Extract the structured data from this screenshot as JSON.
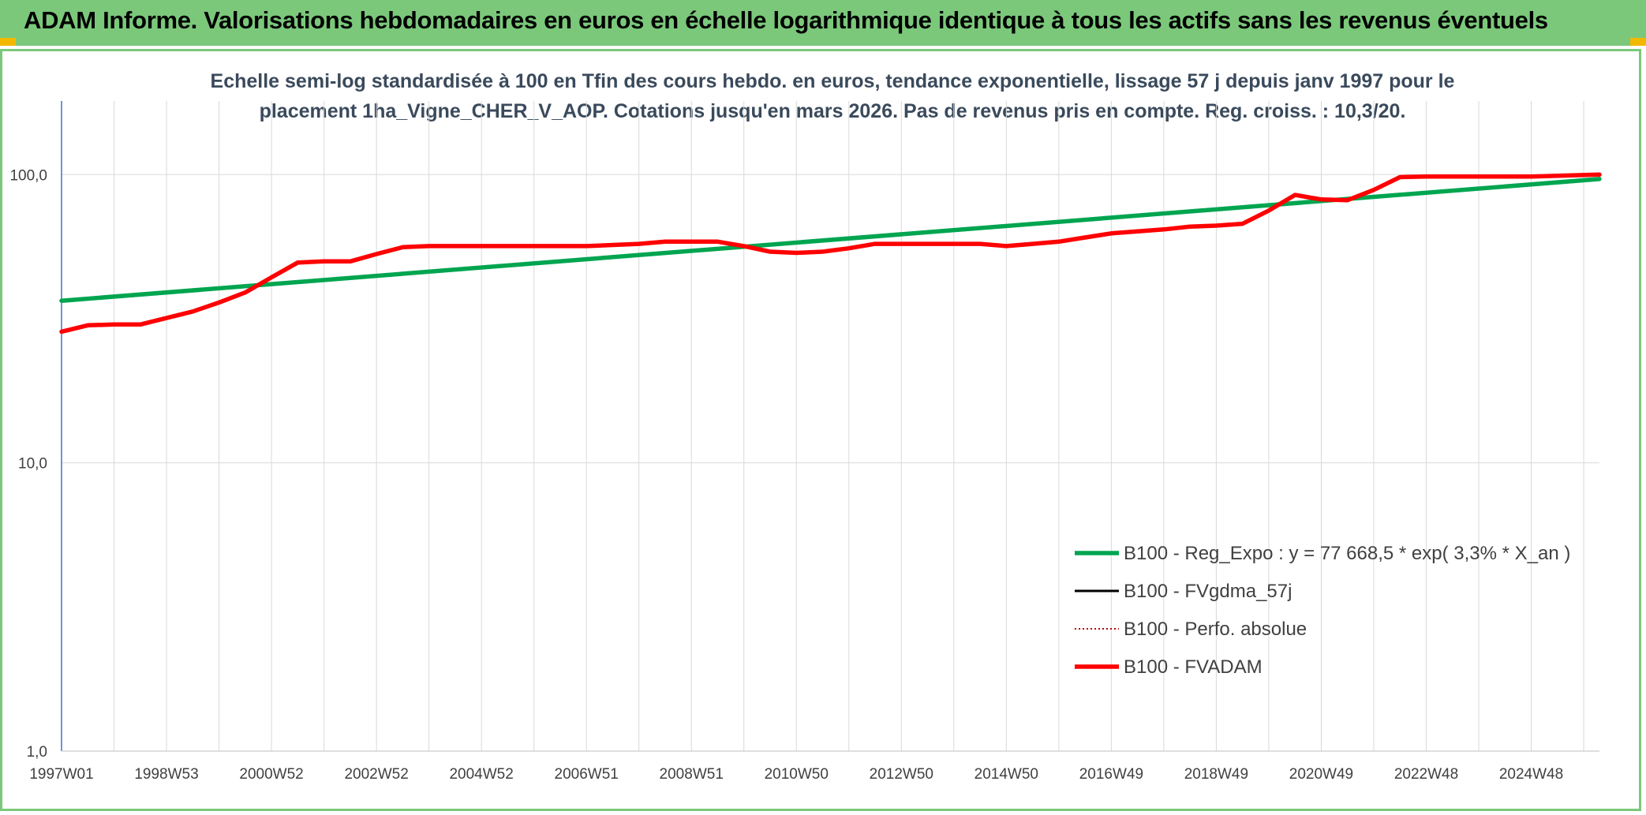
{
  "header": {
    "title": "ADAM Informe. Valorisations hebdomadaires en euros en échelle logarithmique identique à tous les actifs sans les revenus éventuels"
  },
  "chart_data": {
    "type": "line",
    "title": "Echelle semi-log standardisée à 100 en Tfin des cours hebdo. en euros, tendance exponentielle, lissage 57 j depuis janv 1997 pour le placement 1ha_Vigne_CHER_V_AOP. Cotations jusqu'en mars 2026. Pas de revenus pris en compte. Reg. croiss. : 10,3/20.",
    "title_lines": [
      "Echelle semi-log standardisée à 100 en Tfin des cours hebdo. en euros, tendance exponentielle, lissage 57 j depuis janv 1997 pour le",
      "placement 1ha_Vigne_CHER_V_AOP. Cotations jusqu'en mars 2026. Pas de revenus pris en compte. Reg. croiss. : 10,3/20."
    ],
    "y_scale": "log",
    "ylim": [
      1,
      180
    ],
    "xlim": [
      1997.0,
      2026.3
    ],
    "y_ticks": [
      {
        "value": 1,
        "label": "1,0"
      },
      {
        "value": 10,
        "label": "10,0"
      },
      {
        "value": 100,
        "label": "100,0"
      }
    ],
    "x_ticks": [
      {
        "value": 1997.0,
        "label": "1997W01"
      },
      {
        "value": 1999.0,
        "label": "1998W53"
      },
      {
        "value": 2001.0,
        "label": "2000W52"
      },
      {
        "value": 2003.0,
        "label": "2002W52"
      },
      {
        "value": 2005.0,
        "label": "2004W52"
      },
      {
        "value": 2007.0,
        "label": "2006W51"
      },
      {
        "value": 2009.0,
        "label": "2008W51"
      },
      {
        "value": 2011.0,
        "label": "2010W50"
      },
      {
        "value": 2013.0,
        "label": "2012W50"
      },
      {
        "value": 2015.0,
        "label": "2014W50"
      },
      {
        "value": 2017.0,
        "label": "2016W49"
      },
      {
        "value": 2019.0,
        "label": "2018W49"
      },
      {
        "value": 2021.0,
        "label": "2020W49"
      },
      {
        "value": 2023.0,
        "label": "2022W48"
      },
      {
        "value": 2025.0,
        "label": "2024W48"
      }
    ],
    "gridlines": true,
    "legend_position": "bottom-right",
    "series": [
      {
        "name": "B100 - Reg_Expo : y = 77 668,5 * exp( 3,3% *  X_an )",
        "color": "#00a550",
        "style": "solid-thick",
        "points": [
          [
            1997.0,
            36.5
          ],
          [
            2026.3,
            96.5
          ]
        ]
      },
      {
        "name": "B100 - FVgdma_57j",
        "color": "#000000",
        "style": "solid-thin",
        "points": []
      },
      {
        "name": "B100 - Perfo. absolue",
        "color": "#c00000",
        "style": "dotted",
        "points": []
      },
      {
        "name": "B100 - FVADAM",
        "color": "#ff0000",
        "style": "solid-thick",
        "points": [
          [
            1997.0,
            28.5
          ],
          [
            1997.5,
            30.0
          ],
          [
            1998.0,
            30.2
          ],
          [
            1998.5,
            30.2
          ],
          [
            1999.0,
            31.8
          ],
          [
            1999.5,
            33.5
          ],
          [
            2000.0,
            36.0
          ],
          [
            2000.5,
            39.0
          ],
          [
            2001.0,
            44.0
          ],
          [
            2001.5,
            49.5
          ],
          [
            2002.0,
            50.0
          ],
          [
            2002.5,
            50.0
          ],
          [
            2003.0,
            53.0
          ],
          [
            2003.5,
            56.0
          ],
          [
            2004.0,
            56.5
          ],
          [
            2005.0,
            56.5
          ],
          [
            2006.0,
            56.5
          ],
          [
            2007.0,
            56.5
          ],
          [
            2008.0,
            57.5
          ],
          [
            2008.5,
            58.5
          ],
          [
            2009.0,
            58.5
          ],
          [
            2009.5,
            58.5
          ],
          [
            2010.0,
            56.5
          ],
          [
            2010.5,
            54.0
          ],
          [
            2011.0,
            53.5
          ],
          [
            2011.5,
            54.0
          ],
          [
            2012.0,
            55.5
          ],
          [
            2012.5,
            57.5
          ],
          [
            2013.0,
            57.5
          ],
          [
            2014.0,
            57.5
          ],
          [
            2014.5,
            57.5
          ],
          [
            2015.0,
            56.5
          ],
          [
            2015.5,
            57.5
          ],
          [
            2016.0,
            58.5
          ],
          [
            2016.5,
            60.5
          ],
          [
            2017.0,
            62.5
          ],
          [
            2017.5,
            63.5
          ],
          [
            2018.0,
            64.5
          ],
          [
            2018.5,
            66.0
          ],
          [
            2019.0,
            66.5
          ],
          [
            2019.5,
            67.5
          ],
          [
            2020.0,
            75.0
          ],
          [
            2020.5,
            85.0
          ],
          [
            2021.0,
            82.0
          ],
          [
            2021.5,
            81.5
          ],
          [
            2022.0,
            88.5
          ],
          [
            2022.5,
            98.0
          ],
          [
            2023.0,
            98.5
          ],
          [
            2024.0,
            98.5
          ],
          [
            2025.0,
            98.5
          ],
          [
            2026.3,
            100.0
          ]
        ]
      }
    ]
  }
}
